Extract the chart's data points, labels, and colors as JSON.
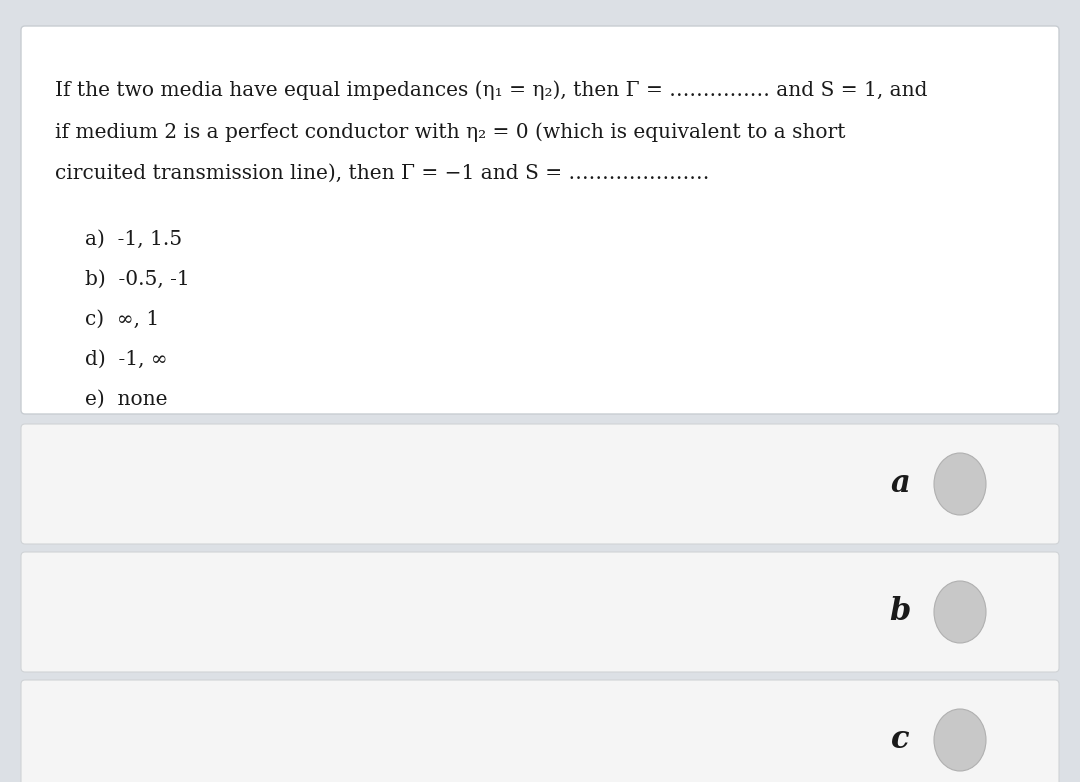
{
  "background_color": "#dce0e5",
  "card_bg": "#ffffff",
  "card_border": "#c8cdd2",
  "row_bg": "#f5f5f5",
  "row_border": "#d0d3d6",
  "question_text_line1": "If the two media have equal impedances (η₁ = η₂), then Γ = …………… and S = 1, and",
  "question_text_line2": "if medium 2 is a perfect conductor with η₂ = 0 (which is equivalent to a short",
  "question_text_line3": "circuited transmission line), then Γ = −1 and S = …………………",
  "options": [
    "a)  -1, 1.5",
    "b)  -0.5, -1",
    "c)  ∞, 1",
    "d)  -1, ∞",
    "e)  none"
  ],
  "answer_labels": [
    "a",
    "b",
    "c"
  ],
  "text_color": "#1a1a1a",
  "font_size_question": 14.5,
  "font_size_options": 14.5,
  "font_size_answers": 22,
  "circle_color": "#c8c8c8",
  "circle_edge_color": "#b0b0b0"
}
